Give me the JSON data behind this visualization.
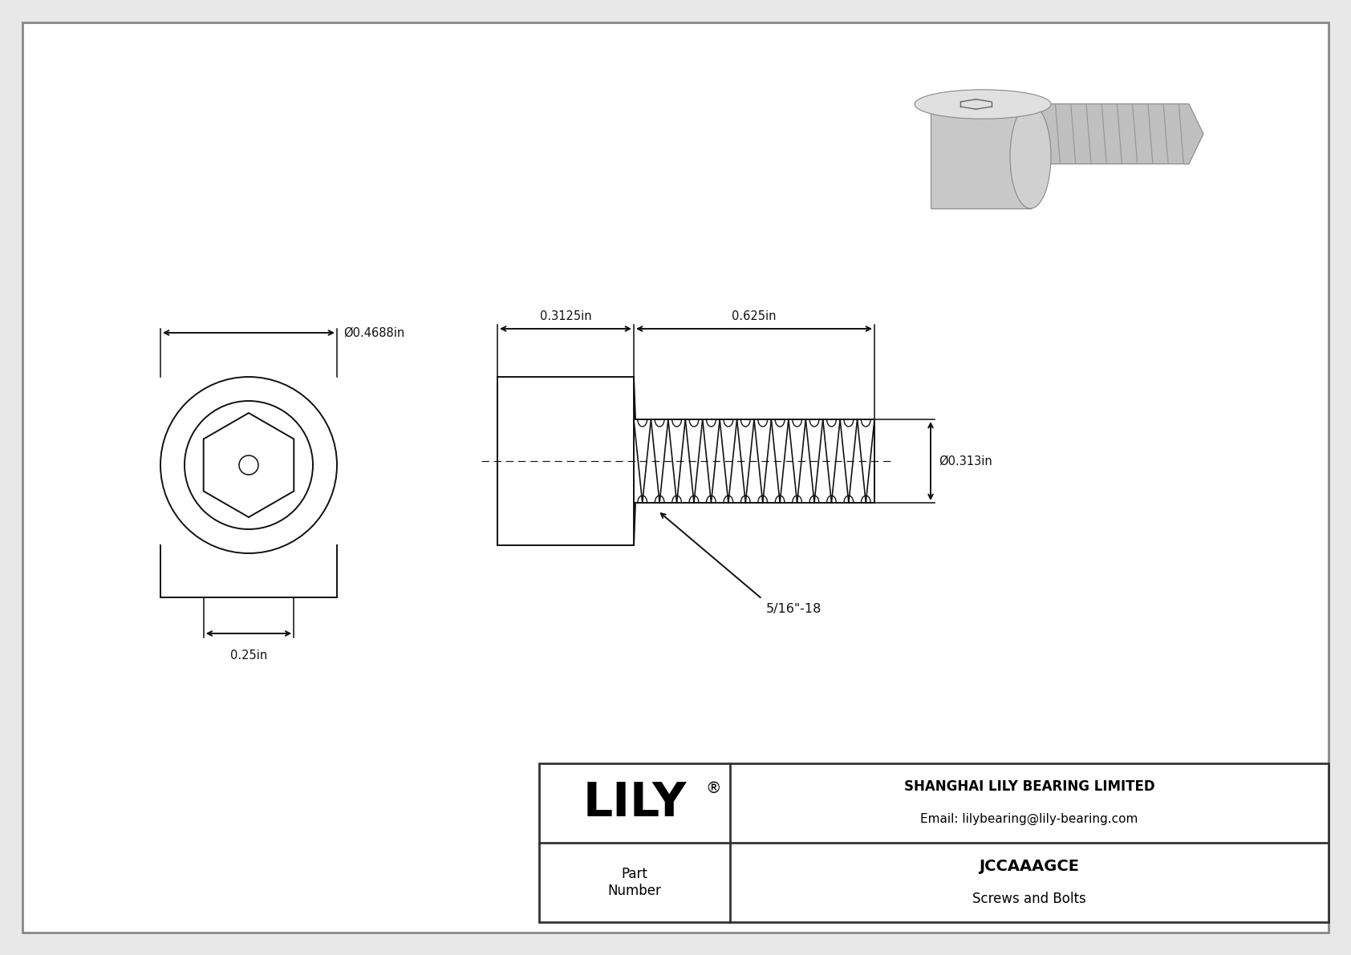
{
  "bg_color": "#e8e8e8",
  "inner_bg": "#ffffff",
  "border_color": "#555555",
  "line_color": "#111111",
  "dim_color": "#111111",
  "font_size_dim": 10.5,
  "company_name": "SHANGHAI LILY BEARING LIMITED",
  "company_email": "Email: lilybearing@lily-bearing.com",
  "part_number": "JCCAAAGCE",
  "part_category": "Screws and Bolts",
  "part_label": "Part\nNumber",
  "logo_text": "LILY",
  "dim_outer_diameter": "Ø0.4688in",
  "dim_hex_width": "0.25in",
  "dim_head_length": "0.3125in",
  "dim_thread_length": "0.625in",
  "dim_thread_diameter": "Ø0.313in",
  "dim_thread_spec": "5/16\"-18"
}
